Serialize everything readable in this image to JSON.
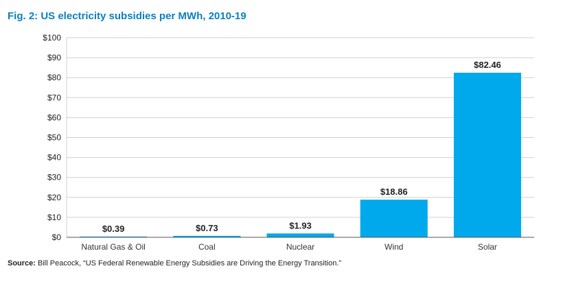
{
  "title": "Fig. 2: US electricity subsidies per MWh, 2010-19",
  "source_label": "Source:",
  "source_text": "Bill Peacock, “US Federal Renewable Energy Subsidies are Driving the Energy Transition.”",
  "colors": {
    "bar": "#00a9ec",
    "title": "#0a7fbf",
    "grid": "#d0d0d0",
    "axis": "#555555"
  },
  "chart_data": {
    "type": "bar",
    "title": "Fig. 2: US electricity subsidies per MWh, 2010-19",
    "xlabel": "",
    "ylabel": "",
    "categories": [
      "Natural Gas & Oil",
      "Coal",
      "Nuclear",
      "Wind",
      "Solar"
    ],
    "values": [
      0.39,
      0.73,
      1.93,
      18.86,
      82.46
    ],
    "data_labels": [
      "$0.39",
      "$0.73",
      "$1.93",
      "$18.86",
      "$82.46"
    ],
    "ylim": [
      0,
      100
    ],
    "yticks": [
      0,
      10,
      20,
      30,
      40,
      50,
      60,
      70,
      80,
      90,
      100
    ],
    "ytick_labels": [
      "$0",
      "$10",
      "$20",
      "$30",
      "$40",
      "$50",
      "$60",
      "$70",
      "$80",
      "$90",
      "$100"
    ],
    "grid": true,
    "legend": "none"
  }
}
